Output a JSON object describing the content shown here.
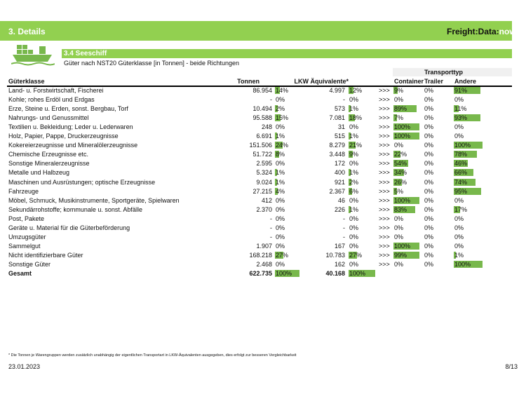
{
  "header": {
    "section": "3. Details",
    "brand": "Freight:Data:",
    "brand_accent": "now"
  },
  "subsection": "3.4 Seeschiff",
  "subtitle": "Güter nach NST20 Güterklasse [in Tonnen] - beide Richtungen",
  "table": {
    "group_header": "Transporttyp",
    "arrow": ">>>",
    "columns": {
      "name": "Güterklasse",
      "tonnen": "Tonnen",
      "lkw": "LKW Äquivalente*",
      "container": "Container",
      "trailer": "Trailer",
      "andere": "Andere"
    },
    "rows": [
      {
        "name": "Land- u. Forstwirtschaft, Fischerei",
        "tonnen": "86.954",
        "tonnen_share": {
          "value": 14,
          "label": "14%"
        },
        "lkw": "4.997",
        "lkw_share": {
          "value": 12,
          "label": "12%"
        },
        "container": {
          "value": 9,
          "label": "9%"
        },
        "trailer": {
          "value": 0,
          "label": "0%"
        },
        "andere": {
          "value": 91,
          "label": "91%"
        }
      },
      {
        "name": "Kohle; rohes Erdöl und Erdgas",
        "tonnen": "-",
        "tonnen_share": {
          "value": 0,
          "label": "0%"
        },
        "lkw": "-",
        "lkw_share": {
          "value": 0,
          "label": "0%"
        },
        "container": {
          "value": 0,
          "label": "0%"
        },
        "trailer": {
          "value": 0,
          "label": "0%"
        },
        "andere": {
          "value": 0,
          "label": "0%"
        }
      },
      {
        "name": "Erze, Steine u. Erden, sonst. Bergbau, Torf",
        "tonnen": "10.494",
        "tonnen_share": {
          "value": 2,
          "label": "2%"
        },
        "lkw": "573",
        "lkw_share": {
          "value": 1,
          "label": "1%"
        },
        "container": {
          "value": 89,
          "label": "89%"
        },
        "trailer": {
          "value": 0,
          "label": "0%"
        },
        "andere": {
          "value": 11,
          "label": "11%"
        }
      },
      {
        "name": "Nahrungs- und Genussmittel",
        "tonnen": "95.588",
        "tonnen_share": {
          "value": 15,
          "label": "15%"
        },
        "lkw": "7.081",
        "lkw_share": {
          "value": 18,
          "label": "18%"
        },
        "container": {
          "value": 7,
          "label": "7%"
        },
        "trailer": {
          "value": 0,
          "label": "0%"
        },
        "andere": {
          "value": 93,
          "label": "93%"
        }
      },
      {
        "name": "Textilien u. Bekleidung; Leder u. Lederwaren",
        "tonnen": "248",
        "tonnen_share": {
          "value": 0,
          "label": "0%"
        },
        "lkw": "31",
        "lkw_share": {
          "value": 0,
          "label": "0%"
        },
        "container": {
          "value": 100,
          "label": "100%"
        },
        "trailer": {
          "value": 0,
          "label": "0%"
        },
        "andere": {
          "value": 0,
          "label": "0%"
        }
      },
      {
        "name": "Holz, Papier, Pappe, Druckerzeugnisse",
        "tonnen": "6.691",
        "tonnen_share": {
          "value": 1,
          "label": "1%"
        },
        "lkw": "515",
        "lkw_share": {
          "value": 1,
          "label": "1%"
        },
        "container": {
          "value": 100,
          "label": "100%"
        },
        "trailer": {
          "value": 0,
          "label": "0%"
        },
        "andere": {
          "value": 0,
          "label": "0%"
        }
      },
      {
        "name": "Kokereierzeugnisse und Mineralölerzeugnisse",
        "tonnen": "151.506",
        "tonnen_share": {
          "value": 24,
          "label": "24%"
        },
        "lkw": "8.279",
        "lkw_share": {
          "value": 21,
          "label": "21%"
        },
        "container": {
          "value": 0,
          "label": "0%"
        },
        "trailer": {
          "value": 0,
          "label": "0%"
        },
        "andere": {
          "value": 100,
          "label": "100%"
        }
      },
      {
        "name": "Chemische Erzeugnisse etc.",
        "tonnen": "51.722",
        "tonnen_share": {
          "value": 8,
          "label": "8%"
        },
        "lkw": "3.448",
        "lkw_share": {
          "value": 9,
          "label": "9%"
        },
        "container": {
          "value": 22,
          "label": "22%"
        },
        "trailer": {
          "value": 0,
          "label": "0%"
        },
        "andere": {
          "value": 78,
          "label": "78%"
        }
      },
      {
        "name": "Sonstige Mineralerzeugnisse",
        "tonnen": "2.595",
        "tonnen_share": {
          "value": 0,
          "label": "0%"
        },
        "lkw": "172",
        "lkw_share": {
          "value": 0,
          "label": "0%"
        },
        "container": {
          "value": 54,
          "label": "54%"
        },
        "trailer": {
          "value": 0,
          "label": "0%"
        },
        "andere": {
          "value": 46,
          "label": "46%"
        }
      },
      {
        "name": "Metalle und Halbzeug",
        "tonnen": "5.324",
        "tonnen_share": {
          "value": 1,
          "label": "1%"
        },
        "lkw": "400",
        "lkw_share": {
          "value": 1,
          "label": "1%"
        },
        "container": {
          "value": 34,
          "label": "34%"
        },
        "trailer": {
          "value": 0,
          "label": "0%"
        },
        "andere": {
          "value": 66,
          "label": "66%"
        }
      },
      {
        "name": "Maschinen und Ausrüstungen; optische Erzeugnisse",
        "tonnen": "9.024",
        "tonnen_share": {
          "value": 1,
          "label": "1%"
        },
        "lkw": "921",
        "lkw_share": {
          "value": 2,
          "label": "2%"
        },
        "container": {
          "value": 26,
          "label": "26%"
        },
        "trailer": {
          "value": 0,
          "label": "0%"
        },
        "andere": {
          "value": 74,
          "label": "74%"
        }
      },
      {
        "name": "Fahrzeuge",
        "tonnen": "27.215",
        "tonnen_share": {
          "value": 4,
          "label": "4%"
        },
        "lkw": "2.367",
        "lkw_share": {
          "value": 6,
          "label": "6%"
        },
        "container": {
          "value": 5,
          "label": "5%"
        },
        "trailer": {
          "value": 0,
          "label": "0%"
        },
        "andere": {
          "value": 95,
          "label": "95%"
        }
      },
      {
        "name": "Möbel, Schmuck, Musikinstrumente, Sportgeräte, Spielwaren",
        "tonnen": "412",
        "tonnen_share": {
          "value": 0,
          "label": "0%"
        },
        "lkw": "46",
        "lkw_share": {
          "value": 0,
          "label": "0%"
        },
        "container": {
          "value": 100,
          "label": "100%"
        },
        "trailer": {
          "value": 0,
          "label": "0%"
        },
        "andere": {
          "value": 0,
          "label": "0%"
        }
      },
      {
        "name": "Sekundärrohstoffe; kommunale u. sonst. Abfälle",
        "tonnen": "2.370",
        "tonnen_share": {
          "value": 0,
          "label": "0%"
        },
        "lkw": "226",
        "lkw_share": {
          "value": 1,
          "label": "1%"
        },
        "container": {
          "value": 83,
          "label": "83%"
        },
        "trailer": {
          "value": 0,
          "label": "0%"
        },
        "andere": {
          "value": 17,
          "label": "17%"
        }
      },
      {
        "name": "Post, Pakete",
        "tonnen": "-",
        "tonnen_share": {
          "value": 0,
          "label": "0%"
        },
        "lkw": "-",
        "lkw_share": {
          "value": 0,
          "label": "0%"
        },
        "container": {
          "value": 0,
          "label": "0%"
        },
        "trailer": {
          "value": 0,
          "label": "0%"
        },
        "andere": {
          "value": 0,
          "label": "0%"
        }
      },
      {
        "name": "Geräte u. Material für die Güterbeförderung",
        "tonnen": "-",
        "tonnen_share": {
          "value": 0,
          "label": "0%"
        },
        "lkw": "-",
        "lkw_share": {
          "value": 0,
          "label": "0%"
        },
        "container": {
          "value": 0,
          "label": "0%"
        },
        "trailer": {
          "value": 0,
          "label": "0%"
        },
        "andere": {
          "value": 0,
          "label": "0%"
        }
      },
      {
        "name": "Umzugsgüter",
        "tonnen": "-",
        "tonnen_share": {
          "value": 0,
          "label": "0%"
        },
        "lkw": "-",
        "lkw_share": {
          "value": 0,
          "label": "0%"
        },
        "container": {
          "value": 0,
          "label": "0%"
        },
        "trailer": {
          "value": 0,
          "label": "0%"
        },
        "andere": {
          "value": 0,
          "label": "0%"
        }
      },
      {
        "name": "Sammelgut",
        "tonnen": "1.907",
        "tonnen_share": {
          "value": 0,
          "label": "0%"
        },
        "lkw": "167",
        "lkw_share": {
          "value": 0,
          "label": "0%"
        },
        "container": {
          "value": 100,
          "label": "100%"
        },
        "trailer": {
          "value": 0,
          "label": "0%"
        },
        "andere": {
          "value": 0,
          "label": "0%"
        }
      },
      {
        "name": "Nicht identifizierbare Güter",
        "tonnen": "168.218",
        "tonnen_share": {
          "value": 27,
          "label": "27%"
        },
        "lkw": "10.783",
        "lkw_share": {
          "value": 27,
          "label": "27%"
        },
        "container": {
          "value": 99,
          "label": "99%"
        },
        "trailer": {
          "value": 0,
          "label": "0%"
        },
        "andere": {
          "value": 1,
          "label": "1%"
        }
      },
      {
        "name": "Sonstige Güter",
        "tonnen": "2.468",
        "tonnen_share": {
          "value": 0,
          "label": "0%"
        },
        "lkw": "162",
        "lkw_share": {
          "value": 0,
          "label": "0%"
        },
        "container": {
          "value": 0,
          "label": "0%"
        },
        "trailer": {
          "value": 0,
          "label": "0%"
        },
        "andere": {
          "value": 100,
          "label": "100%"
        }
      }
    ],
    "total": {
      "name": "Gesamt",
      "tonnen": "622.735",
      "tonnen_share": {
        "value": 100,
        "label": "100%"
      },
      "lkw": "40.168",
      "lkw_share": {
        "value": 100,
        "label": "100%"
      }
    }
  },
  "footer": {
    "note": "* Die Tonnen je Warengruppen werden zusätzlich unabhängig der eigentlichen Transportart in LKW-Äquivalenten ausgegeben, dies erfolgt zur besseren Vergleichbarkeit",
    "date": "23.01.2023",
    "page": "8/13"
  }
}
